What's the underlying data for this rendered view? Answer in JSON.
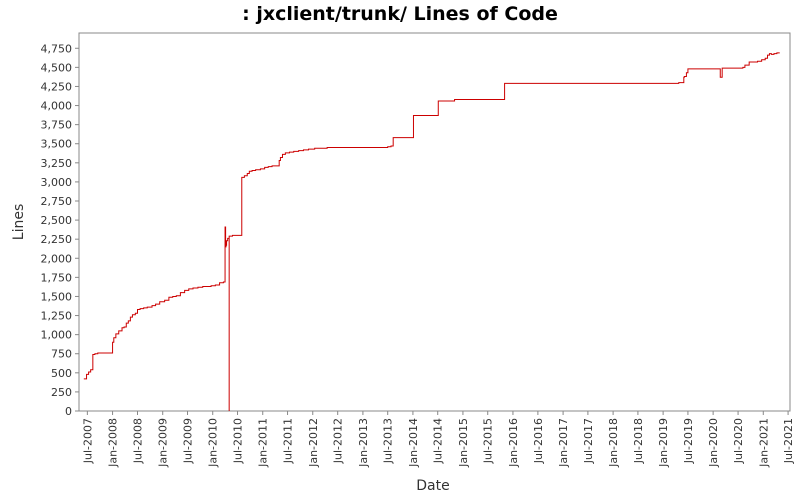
{
  "chart_data": {
    "type": "line",
    "title": ": jxclient/trunk/ Lines of Code",
    "xlabel": "Date",
    "ylabel": "Lines",
    "x_ticks": [
      "Jul-2007",
      "Jan-2008",
      "Jul-2008",
      "Jan-2009",
      "Jul-2009",
      "Jan-2010",
      "Jul-2010",
      "Jan-2011",
      "Jul-2011",
      "Jan-2012",
      "Jul-2012",
      "Jan-2013",
      "Jul-2013",
      "Jan-2014",
      "Jul-2014",
      "Jan-2015",
      "Jul-2015",
      "Jan-2016",
      "Jul-2016",
      "Jan-2017",
      "Jul-2017",
      "Jan-2018",
      "Jul-2018",
      "Jan-2019",
      "Jul-2019",
      "Jan-2020",
      "Jul-2020",
      "Jan-2021",
      "Jul-2021"
    ],
    "y_ticks": [
      0,
      250,
      500,
      750,
      1000,
      1250,
      1500,
      1750,
      2000,
      2250,
      2500,
      2750,
      3000,
      3250,
      3500,
      3750,
      4000,
      4250,
      4500,
      4750
    ],
    "y_tick_labels": [
      "0",
      "250",
      "500",
      "750",
      "1,000",
      "1,250",
      "1,500",
      "1,750",
      "2,000",
      "2,250",
      "2,500",
      "2,750",
      "3,000",
      "3,250",
      "3,500",
      "3,750",
      "4,000",
      "4,250",
      "4,500",
      "4,750"
    ],
    "ylim": [
      0,
      4950
    ],
    "xlim": [
      "2007-05-01",
      "2021-07-15"
    ],
    "grid": false,
    "series_color": "#cc0000",
    "series": [
      {
        "x": [
          "2007-06-05",
          "2007-06-25",
          "2007-07-10",
          "2007-07-25",
          "2007-08-10",
          "2007-08-25",
          "2007-09-15",
          "2007-10-20",
          "2007-12-01",
          "2007-12-20",
          "2008-01-01",
          "2008-01-10",
          "2008-01-25",
          "2008-02-15",
          "2008-03-10",
          "2008-03-25",
          "2008-04-10",
          "2008-04-25",
          "2008-05-10",
          "2008-05-25",
          "2008-06-15",
          "2008-07-01",
          "2008-07-20",
          "2008-08-15",
          "2008-09-10",
          "2008-10-15",
          "2008-11-10",
          "2008-12-10",
          "2009-01-15",
          "2009-02-15",
          "2009-03-15",
          "2009-04-10",
          "2009-05-10",
          "2009-06-10",
          "2009-07-10",
          "2009-08-10",
          "2009-09-15",
          "2009-10-20",
          "2009-11-20",
          "2009-12-20",
          "2010-01-20",
          "2010-02-20",
          "2010-03-20",
          "2010-04-01",
          "2010-04-05",
          "2010-04-08",
          "2010-04-12",
          "2010-04-20",
          "2010-05-01",
          "2010-05-01",
          "2010-05-01",
          "2010-05-10",
          "2010-05-25",
          "2010-06-15",
          "2010-07-10",
          "2010-08-01",
          "2010-08-20",
          "2010-09-10",
          "2010-09-25",
          "2010-10-15",
          "2010-11-10",
          "2010-12-15",
          "2011-01-15",
          "2011-02-10",
          "2011-03-10",
          "2011-04-15",
          "2011-05-01",
          "2011-05-10",
          "2011-05-25",
          "2011-06-15",
          "2011-07-15",
          "2011-08-15",
          "2011-09-20",
          "2011-10-25",
          "2011-12-01",
          "2012-01-15",
          "2012-03-01",
          "2012-04-15",
          "2012-06-01",
          "2012-07-01",
          "2013-01-01",
          "2013-06-15",
          "2013-07-01",
          "2013-07-25",
          "2013-08-10",
          "2014-01-01",
          "2014-01-05",
          "2014-06-25",
          "2014-07-05",
          "2014-11-01",
          "2015-05-01",
          "2015-10-25",
          "2015-11-01",
          "2016-06-01",
          "2017-01-01",
          "2018-01-01",
          "2018-06-01",
          "2019-01-01",
          "2019-04-25",
          "2019-06-01",
          "2019-06-05",
          "2019-06-20",
          "2019-07-01",
          "2019-11-01",
          "2020-01-01",
          "2020-02-20",
          "2020-02-22",
          "2020-03-05",
          "2020-03-07",
          "2020-06-01",
          "2020-07-20",
          "2020-08-05",
          "2020-08-20",
          "2020-09-20",
          "2020-10-20",
          "2020-11-20",
          "2020-12-20",
          "2021-01-15",
          "2021-02-01",
          "2021-02-15",
          "2021-03-01",
          "2021-03-20",
          "2021-04-10",
          "2021-05-01"
        ],
        "y": [
          420,
          480,
          510,
          540,
          740,
          750,
          760,
          760,
          760,
          760,
          900,
          960,
          1010,
          1050,
          1090,
          1100,
          1150,
          1180,
          1230,
          1260,
          1280,
          1330,
          1340,
          1350,
          1360,
          1380,
          1400,
          1430,
          1450,
          1490,
          1500,
          1510,
          1550,
          1580,
          1600,
          1610,
          1620,
          1630,
          1630,
          1640,
          1650,
          1680,
          1690,
          2410,
          2150,
          2170,
          2230,
          2260,
          2280,
          0,
          2290,
          2290,
          2300,
          2300,
          2300,
          3060,
          3080,
          3110,
          3140,
          3150,
          3160,
          3170,
          3190,
          3200,
          3210,
          3210,
          3280,
          3320,
          3360,
          3380,
          3390,
          3400,
          3410,
          3420,
          3430,
          3440,
          3440,
          3450,
          3450,
          3450,
          3450,
          3450,
          3460,
          3470,
          3580,
          3580,
          3870,
          3870,
          4060,
          4080,
          4080,
          4080,
          4290,
          4290,
          4290,
          4290,
          4290,
          4290,
          4300,
          4370,
          4380,
          4430,
          4480,
          4480,
          4480,
          4480,
          4370,
          4370,
          4490,
          4490,
          4490,
          4500,
          4530,
          4570,
          4570,
          4580,
          4600,
          4620,
          4660,
          4680,
          4670,
          4680,
          4690,
          4690
        ]
      }
    ]
  }
}
